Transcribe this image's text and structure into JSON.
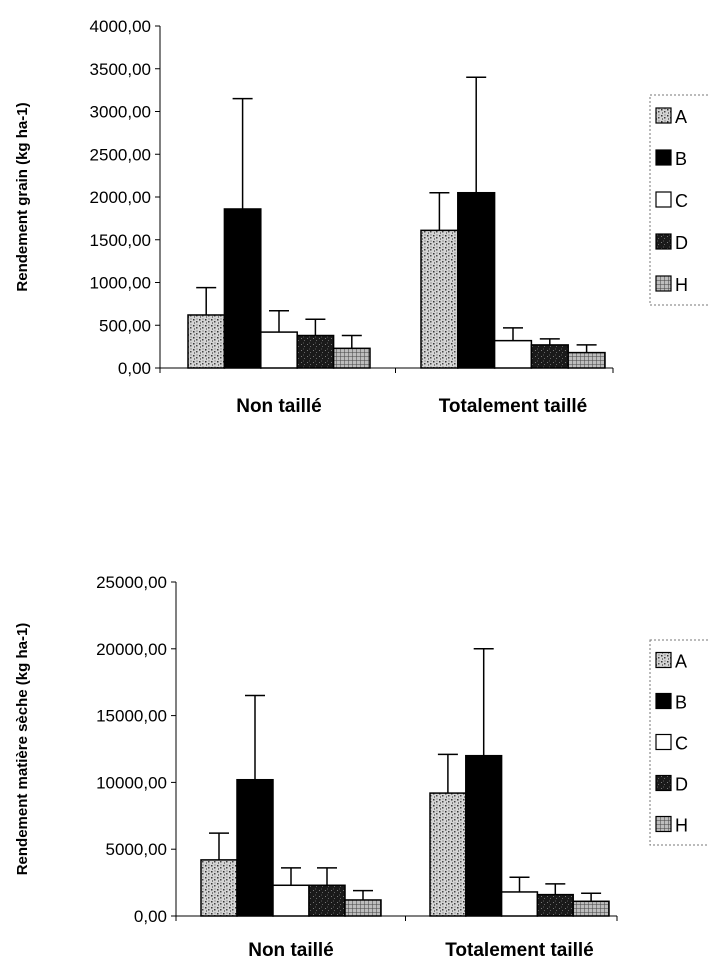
{
  "chart_data": [
    {
      "type": "bar",
      "title": "",
      "xlabel": "",
      "ylabel": "Rendement grain (kg ha-1)",
      "ylim": [
        0,
        4000
      ],
      "yticks": [
        0,
        500,
        1000,
        1500,
        2000,
        2500,
        3000,
        3500,
        4000
      ],
      "tick_format": "fr-2dec",
      "categories": [
        "Non taillé",
        "Totalement taillé"
      ],
      "legend_position": "right",
      "series": [
        {
          "name": "A",
          "values": [
            620,
            1610
          ],
          "errors": [
            320,
            440
          ],
          "pattern": "speckle"
        },
        {
          "name": "B",
          "values": [
            1860,
            2050
          ],
          "errors": [
            1290,
            1350
          ],
          "pattern": "solid-black"
        },
        {
          "name": "C",
          "values": [
            420,
            320
          ],
          "errors": [
            250,
            150
          ],
          "pattern": "white"
        },
        {
          "name": "D",
          "values": [
            380,
            270
          ],
          "errors": [
            190,
            70
          ],
          "pattern": "dark-speckle"
        },
        {
          "name": "H",
          "values": [
            230,
            180
          ],
          "errors": [
            150,
            90
          ],
          "pattern": "grid"
        }
      ]
    },
    {
      "type": "bar",
      "title": "",
      "xlabel": "",
      "ylabel": "Rendement matière sèche (kg ha-1)",
      "ylim": [
        0,
        25000
      ],
      "yticks": [
        0,
        5000,
        10000,
        15000,
        20000,
        25000
      ],
      "tick_format": "fr-2dec",
      "categories": [
        "Non taillé",
        "Totalement taillé"
      ],
      "legend_position": "right",
      "series": [
        {
          "name": "A",
          "values": [
            4200,
            9200
          ],
          "errors": [
            2000,
            2900
          ],
          "pattern": "speckle"
        },
        {
          "name": "B",
          "values": [
            10200,
            12000
          ],
          "errors": [
            6300,
            8000
          ],
          "pattern": "solid-black"
        },
        {
          "name": "C",
          "values": [
            2300,
            1800
          ],
          "errors": [
            1300,
            1100
          ],
          "pattern": "white"
        },
        {
          "name": "D",
          "values": [
            2300,
            1600
          ],
          "errors": [
            1300,
            800
          ],
          "pattern": "dark-speckle"
        },
        {
          "name": "H",
          "values": [
            1200,
            1100
          ],
          "errors": [
            700,
            600
          ],
          "pattern": "grid"
        }
      ]
    }
  ]
}
